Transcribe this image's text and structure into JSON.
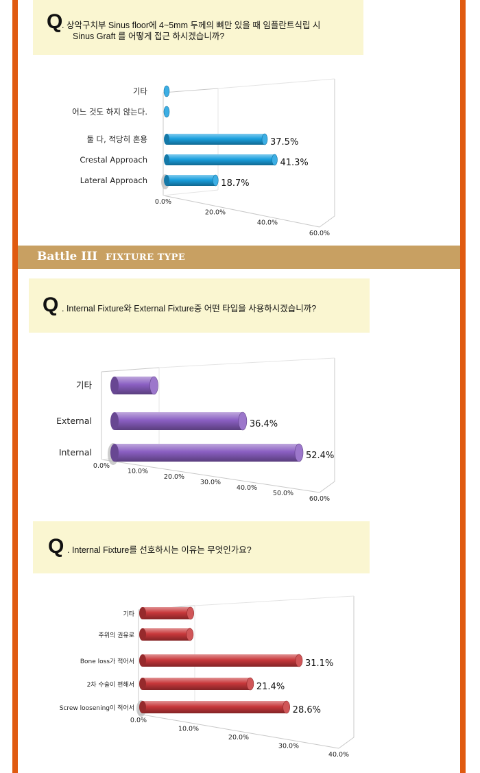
{
  "section_banner": {
    "title": "Battle III",
    "subtitle": "FIXTURE TYPE"
  },
  "q1": {
    "mark": "Q",
    "line1": ". 상악구치부 Sinus floor에 4~5mm 두께의 뼈만 있을 때 임플란트식립 시",
    "line2": "Sinus Graft 를 어떻게 접근 하시겠습니까?"
  },
  "q2": {
    "mark": "Q",
    "line1": ". Internal Fixture와 External Fixture중 어떤 타입을 사용하시겠습니까?"
  },
  "q3": {
    "mark": "Q",
    "line1": ". Internal Fixture를 선호하시는 이유는 무엇인가요?"
  },
  "colors": {
    "border": "#e05a10",
    "banner": "#c8a062",
    "qbox": "#faf6d1",
    "bar_blue": "#1aa0df",
    "bar_purple": "#8a5fc2",
    "bar_red": "#c8383b"
  },
  "chart_data": [
    {
      "type": "bar",
      "orientation": "horizontal",
      "categories": [
        "기타",
        "어느 것도 하지 않는다.",
        "둘 다, 적당히 혼용",
        "Crestal Approach",
        "Lateral Approach"
      ],
      "values": [
        0,
        0,
        37.5,
        41.3,
        18.7
      ],
      "value_labels": [
        "",
        "",
        "37.5%",
        "41.3%",
        "18.7%"
      ],
      "ticks": [
        "0.0%",
        "20.0%",
        "40.0%",
        "60.0%"
      ],
      "xlim": [
        0,
        60
      ],
      "color": "#1aa0df"
    },
    {
      "type": "bar",
      "orientation": "horizontal",
      "categories": [
        "기타",
        "External",
        "Internal"
      ],
      "values": [
        11.2,
        36.4,
        52.4
      ],
      "value_labels": [
        "",
        "36.4%",
        "52.4%"
      ],
      "ticks": [
        "0.0%",
        "10.0%",
        "20.0%",
        "30.0%",
        "40.0%",
        "50.0%",
        "60.0%"
      ],
      "xlim": [
        0,
        60
      ],
      "color": "#8a5fc2"
    },
    {
      "type": "bar",
      "orientation": "horizontal",
      "categories": [
        "기타",
        "주위의 권유로",
        "Bone loss가 적어서",
        "2차 수술이 편해서",
        "Screw loosening이 적어서"
      ],
      "values": [
        9.5,
        9.4,
        31.1,
        21.4,
        28.6
      ],
      "value_labels": [
        "",
        "",
        "31.1%",
        "21.4%",
        "28.6%"
      ],
      "ticks": [
        "0.0%",
        "10.0%",
        "20.0%",
        "30.0%",
        "40.0%"
      ],
      "xlim": [
        0,
        40
      ],
      "color": "#c8383b"
    }
  ]
}
